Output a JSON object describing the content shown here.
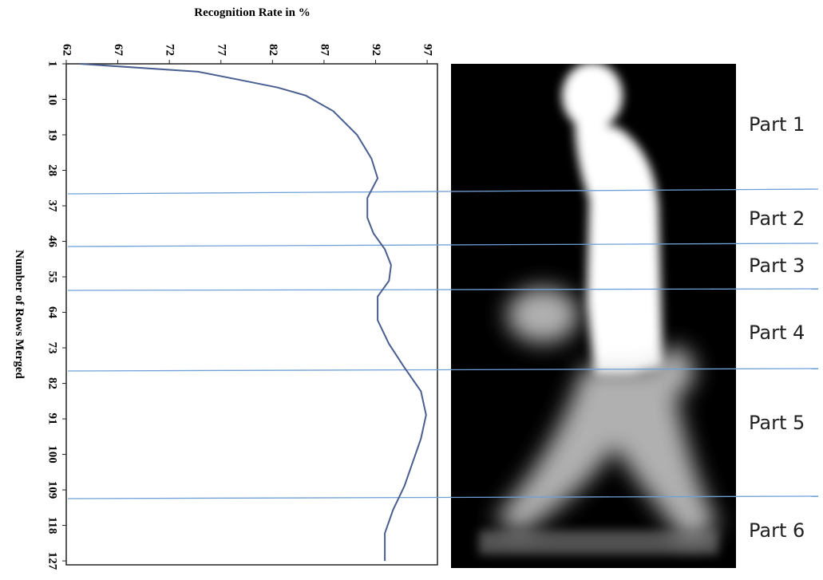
{
  "chart_data": {
    "type": "line",
    "title": "Recognition Rate in %",
    "x_label": "Number of Rows Merged",
    "x": [
      1,
      3,
      5,
      7,
      9,
      13,
      19,
      25,
      30,
      35,
      40,
      44,
      48,
      52,
      56,
      60,
      66,
      72,
      78,
      84,
      90,
      96,
      102,
      108,
      114,
      120,
      127
    ],
    "values": [
      63.3,
      74.8,
      78.7,
      82.5,
      85.2,
      87.9,
      90.2,
      91.6,
      92.2,
      91.2,
      91.2,
      91.8,
      92.9,
      93.5,
      93.3,
      92.2,
      92.2,
      93.3,
      94.8,
      96.4,
      96.9,
      96.4,
      95.6,
      94.8,
      93.7,
      92.9,
      92.9
    ],
    "color": "#4a5f8f",
    "xlim": [
      1,
      128
    ],
    "xticks": [
      1,
      10,
      19,
      28,
      37,
      46,
      55,
      64,
      73,
      82,
      91,
      100,
      109,
      118,
      127
    ],
    "ylim": [
      62,
      98
    ],
    "yticks": [
      62,
      67,
      72,
      77,
      82,
      87,
      92,
      97
    ],
    "annotations": [
      "Part 1",
      "Part 2",
      "Part 3",
      "Part 4",
      "Part 5",
      "Part 6"
    ]
  }
}
